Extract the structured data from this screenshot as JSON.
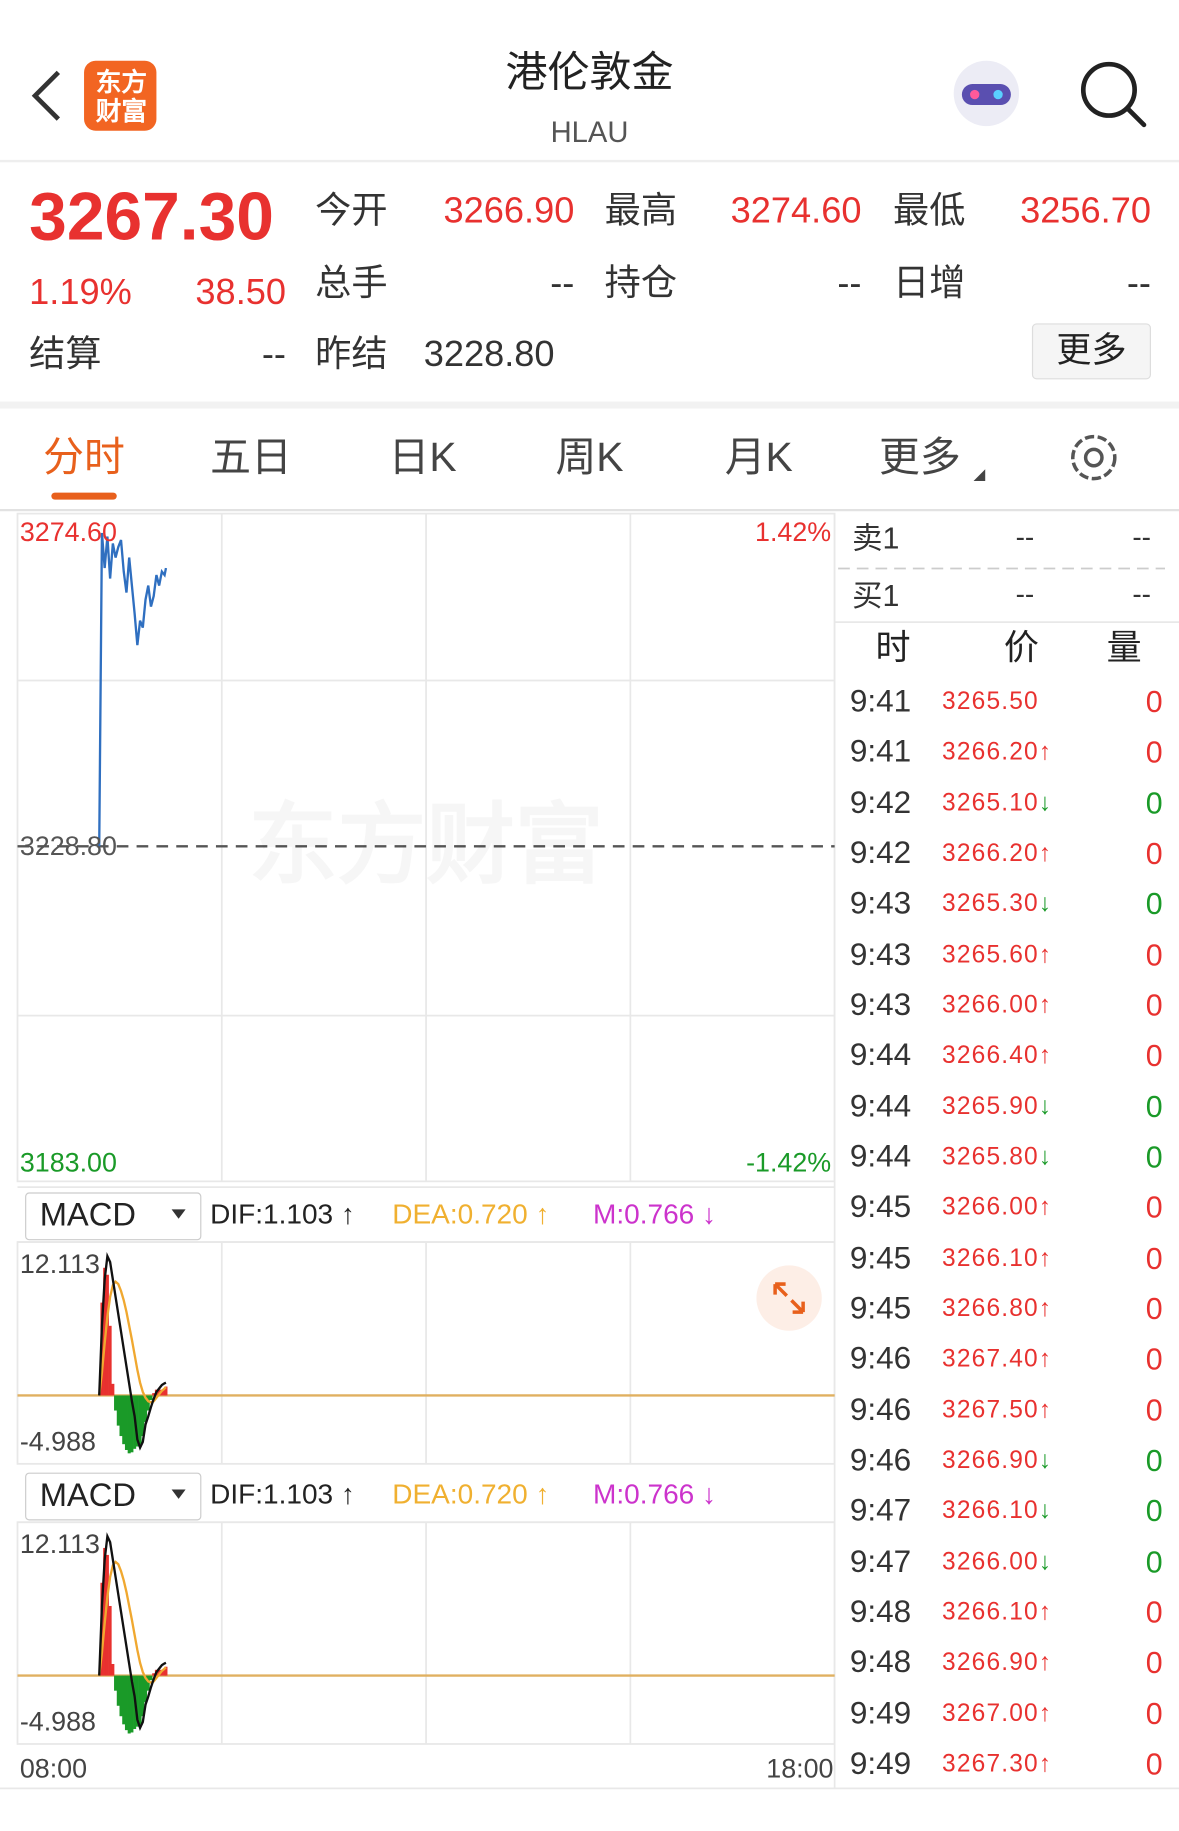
{
  "header": {
    "title": "港伦敦金",
    "code": "HLAU",
    "logo": "东方财富"
  },
  "quote": {
    "price": "3267.30",
    "change_pct": "1.19%",
    "change": "38.50",
    "fields": [
      {
        "label": "今开",
        "value": "3266.90"
      },
      {
        "label": "最高",
        "value": "3274.60"
      },
      {
        "label": "最低",
        "value": "3256.70"
      },
      {
        "label": "总手",
        "value": "--"
      },
      {
        "label": "持仓",
        "value": "--"
      },
      {
        "label": "日增",
        "value": "--"
      },
      {
        "label": "结算",
        "value": "--"
      },
      {
        "label": "昨结",
        "value": "3228.80"
      }
    ],
    "more": "更多"
  },
  "tabs": [
    "分时",
    "五日",
    "日K",
    "周K",
    "月K",
    "更多"
  ],
  "watermark": "东方财富",
  "intraday": {
    "type": "line",
    "line_color": "#2f6fc0",
    "ylim": [
      {
        "value": 3183,
        "label": "3183.00"
      },
      {
        "value": 3274.6,
        "label": "3274.60"
      }
    ],
    "pct": [
      "1.42%",
      "-1.42%"
    ],
    "baseline": {
      "value": 3228.8,
      "label": "3228.80"
    },
    "xlim": [
      "08:00",
      "18:00"
    ],
    "x": [
      "09:00",
      "09:02",
      "09:04",
      "09:06",
      "09:08",
      "09:10",
      "09:12",
      "09:14",
      "09:16",
      "09:18",
      "09:20",
      "09:22",
      "09:24",
      "09:26",
      "09:28",
      "09:30",
      "09:32",
      "09:34",
      "09:36",
      "09:38",
      "09:40",
      "09:42",
      "09:44",
      "09:46",
      "09:48",
      "09:49"
    ],
    "values": [
      3228.8,
      3273.5,
      3268.5,
      3273,
      3267,
      3272,
      3270,
      3271.5,
      3272.5,
      3268,
      3265,
      3270,
      3266,
      3262,
      3257.5,
      3261,
      3260,
      3264,
      3266,
      3263,
      3264.5,
      3267.5,
      3266,
      3268,
      3267.5,
      3268.5
    ]
  },
  "macd_panels": [
    {
      "type": "macd",
      "name": "MACD",
      "dif": "DIF:1.103 ↑",
      "dea": "DEA:0.720 ↑",
      "m": "M:0.766 ↓",
      "ylim": [
        {
          "value": -4.988,
          "label": "-4.988"
        },
        {
          "value": 12.113,
          "label": "12.113"
        }
      ],
      "up_color": "#e8312f",
      "down_color": "#1a9a28",
      "dif_color": "#111111",
      "dea_color": "#f0a830",
      "x": [
        "09:00",
        "09:02",
        "09:04",
        "09:06",
        "09:08",
        "09:10",
        "09:12",
        "09:14",
        "09:16",
        "09:18",
        "09:20",
        "09:22",
        "09:24",
        "09:26",
        "09:28",
        "09:30",
        "09:32",
        "09:34",
        "09:36",
        "09:38",
        "09:40",
        "09:42",
        "09:44",
        "09:46",
        "09:48",
        "09:49"
      ],
      "dif_values": [
        0,
        6,
        10,
        12,
        11.5,
        10,
        8.5,
        7,
        5.5,
        4,
        2.5,
        1,
        -0.5,
        -1.8,
        -3.8,
        -4.5,
        -4,
        -2.5,
        -1.8,
        -1,
        -0.3,
        0.3,
        0.6,
        0.9,
        1.05,
        1.103
      ],
      "dea_values": [
        0,
        2,
        4.5,
        6.8,
        8.5,
        9.5,
        9.8,
        9.6,
        9,
        8.2,
        7.2,
        6,
        4.8,
        3.5,
        2.2,
        1.1,
        0.3,
        -0.2,
        -0.5,
        -0.6,
        -0.5,
        -0.2,
        0.1,
        0.4,
        0.6,
        0.72
      ],
      "m_values": [
        0,
        8,
        11,
        10.4,
        6,
        1,
        -1.3,
        -2.6,
        -3.5,
        -4.2,
        -4.7,
        -4.988,
        -4.9,
        -4.6,
        -4.4,
        -4.2,
        -3.5,
        -2.3,
        -1.3,
        -0.4,
        0.2,
        0.5,
        0.5,
        0.5,
        0.45,
        0.766
      ]
    },
    {
      "type": "macd",
      "name": "MACD",
      "dif": "DIF:1.103 ↑",
      "dea": "DEA:0.720 ↑",
      "m": "M:0.766 ↓",
      "ylim": [
        {
          "value": -4.988,
          "label": "-4.988"
        },
        {
          "value": 12.113,
          "label": "12.113"
        }
      ],
      "up_color": "#e8312f",
      "down_color": "#1a9a28",
      "dif_color": "#111111",
      "dea_color": "#f0a830",
      "x": [
        "09:00",
        "09:02",
        "09:04",
        "09:06",
        "09:08",
        "09:10",
        "09:12",
        "09:14",
        "09:16",
        "09:18",
        "09:20",
        "09:22",
        "09:24",
        "09:26",
        "09:28",
        "09:30",
        "09:32",
        "09:34",
        "09:36",
        "09:38",
        "09:40",
        "09:42",
        "09:44",
        "09:46",
        "09:48",
        "09:49"
      ],
      "dif_values": [
        0,
        6,
        10,
        12,
        11.5,
        10,
        8.5,
        7,
        5.5,
        4,
        2.5,
        1,
        -0.5,
        -1.8,
        -3.8,
        -4.5,
        -4,
        -2.5,
        -1.8,
        -1,
        -0.3,
        0.3,
        0.6,
        0.9,
        1.05,
        1.103
      ],
      "dea_values": [
        0,
        2,
        4.5,
        6.8,
        8.5,
        9.5,
        9.8,
        9.6,
        9,
        8.2,
        7.2,
        6,
        4.8,
        3.5,
        2.2,
        1.1,
        0.3,
        -0.2,
        -0.5,
        -0.6,
        -0.5,
        -0.2,
        0.1,
        0.4,
        0.6,
        0.72
      ],
      "m_values": [
        0,
        8,
        11,
        10.4,
        6,
        1,
        -1.3,
        -2.6,
        -3.5,
        -4.2,
        -4.7,
        -4.988,
        -4.9,
        -4.6,
        -4.4,
        -4.2,
        -3.5,
        -2.3,
        -1.3,
        -0.4,
        0.2,
        0.5,
        0.5,
        0.5,
        0.45,
        0.766
      ]
    }
  ],
  "order_book": [
    {
      "label": "卖1",
      "price": "--",
      "volume": "--"
    },
    {
      "label": "买1",
      "price": "--",
      "volume": "--"
    }
  ],
  "trades": {
    "headers": [
      "时",
      "价",
      "量"
    ],
    "rows": [
      {
        "time": "9:41",
        "price": "3265.50",
        "volume": 0,
        "color": "#e8312f"
      },
      {
        "time": "9:41",
        "price": "3266.20",
        "arrow": "↑",
        "volume": 0,
        "color": "#e8312f"
      },
      {
        "time": "9:42",
        "price": "3265.10",
        "arrow": "↓",
        "volume": 0,
        "color": "#1a9a28"
      },
      {
        "time": "9:42",
        "price": "3266.20",
        "arrow": "↑",
        "volume": 0,
        "color": "#e8312f"
      },
      {
        "time": "9:43",
        "price": "3265.30",
        "arrow": "↓",
        "volume": 0,
        "color": "#1a9a28"
      },
      {
        "time": "9:43",
        "price": "3265.60",
        "arrow": "↑",
        "volume": 0,
        "color": "#e8312f"
      },
      {
        "time": "9:43",
        "price": "3266.00",
        "arrow": "↑",
        "volume": 0,
        "color": "#e8312f"
      },
      {
        "time": "9:44",
        "price": "3266.40",
        "arrow": "↑",
        "volume": 0,
        "color": "#e8312f"
      },
      {
        "time": "9:44",
        "price": "3265.90",
        "arrow": "↓",
        "volume": 0,
        "color": "#1a9a28"
      },
      {
        "time": "9:44",
        "price": "3265.80",
        "arrow": "↓",
        "volume": 0,
        "color": "#1a9a28"
      },
      {
        "time": "9:45",
        "price": "3266.00",
        "arrow": "↑",
        "volume": 0,
        "color": "#e8312f"
      },
      {
        "time": "9:45",
        "price": "3266.10",
        "arrow": "↑",
        "volume": 0,
        "color": "#e8312f"
      },
      {
        "time": "9:45",
        "price": "3266.80",
        "arrow": "↑",
        "volume": 0,
        "color": "#e8312f"
      },
      {
        "time": "9:46",
        "price": "3267.40",
        "arrow": "↑",
        "volume": 0,
        "color": "#e8312f"
      },
      {
        "time": "9:46",
        "price": "3267.50",
        "arrow": "↑",
        "volume": 0,
        "color": "#e8312f"
      },
      {
        "time": "9:46",
        "price": "3266.90",
        "arrow": "↓",
        "volume": 0,
        "color": "#1a9a28"
      },
      {
        "time": "9:47",
        "price": "3266.10",
        "arrow": "↓",
        "volume": 0,
        "color": "#1a9a28"
      },
      {
        "time": "9:47",
        "price": "3266.00",
        "arrow": "↓",
        "volume": 0,
        "color": "#1a9a28"
      },
      {
        "time": "9:48",
        "price": "3266.10",
        "arrow": "↑",
        "volume": 0,
        "color": "#e8312f"
      },
      {
        "time": "9:48",
        "price": "3266.90",
        "arrow": "↑",
        "volume": 0,
        "color": "#e8312f"
      },
      {
        "time": "9:49",
        "price": "3267.00",
        "arrow": "↑",
        "volume": 0,
        "color": "#e8312f"
      },
      {
        "time": "9:49",
        "price": "3267.30",
        "arrow": "↑",
        "volume": 0,
        "color": "#e8312f"
      }
    ]
  }
}
